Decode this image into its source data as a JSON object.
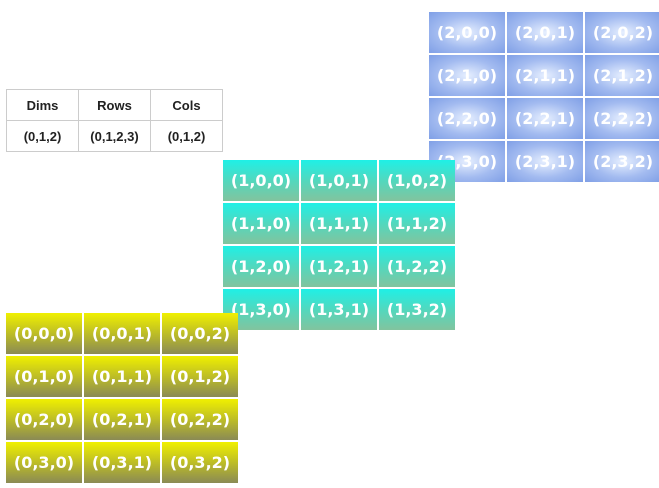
{
  "table": {
    "headers": [
      "Dims",
      "Rows",
      "Cols"
    ],
    "values": [
      "(0,1,2)",
      "(0,1,2,3)",
      "(0,1,2)"
    ]
  },
  "grids": [
    {
      "cells": [
        [
          "(0,0,0)",
          "(0,0,1)",
          "(0,0,2)"
        ],
        [
          "(0,1,0)",
          "(0,1,1)",
          "(0,1,2)"
        ],
        [
          "(0,2,0)",
          "(0,2,1)",
          "(0,2,2)"
        ],
        [
          "(0,3,0)",
          "(0,3,1)",
          "(0,3,2)"
        ]
      ]
    },
    {
      "cells": [
        [
          "(1,0,0)",
          "(1,0,1)",
          "(1,0,2)"
        ],
        [
          "(1,1,0)",
          "(1,1,1)",
          "(1,1,2)"
        ],
        [
          "(1,2,0)",
          "(1,2,1)",
          "(1,2,2)"
        ],
        [
          "(1,3,0)",
          "(1,3,1)",
          "(1,3,2)"
        ]
      ]
    },
    {
      "cells": [
        [
          "(2,0,0)",
          "(2,0,1)",
          "(2,0,2)"
        ],
        [
          "(2,1,0)",
          "(2,1,1)",
          "(2,1,2)"
        ],
        [
          "(2,2,0)",
          "(2,2,1)",
          "(2,2,2)"
        ],
        [
          "(2,3,0)",
          "(2,3,1)",
          "(2,3,2)"
        ]
      ]
    }
  ],
  "colors": {
    "grid_0": "#e0e000",
    "grid_1": "#1ff0e6",
    "grid_2": "#a3bbf0"
  }
}
